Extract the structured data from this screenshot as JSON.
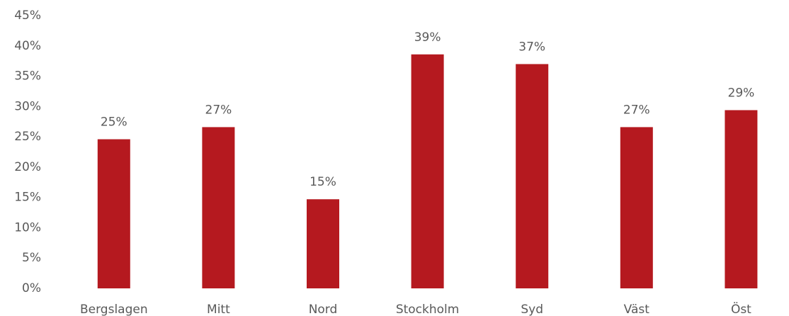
{
  "chart_data": {
    "type": "bar",
    "categories": [
      "Bergslagen",
      "Mitt",
      "Nord",
      "Stockholm",
      "Syd",
      "Väst",
      "Öst"
    ],
    "values": [
      24.6,
      26.6,
      14.7,
      38.6,
      37.0,
      26.6,
      29.4
    ],
    "value_labels": [
      "25%",
      "27%",
      "15%",
      "39%",
      "37%",
      "27%",
      "29%"
    ],
    "color": "#b5191f",
    "ylim": [
      0,
      45
    ],
    "yticks": [
      {
        "value": 0,
        "label": "0%"
      },
      {
        "value": 5,
        "label": "5%"
      },
      {
        "value": 10,
        "label": "10%"
      },
      {
        "value": 15,
        "label": "15%"
      },
      {
        "value": 20,
        "label": "20%"
      },
      {
        "value": 25,
        "label": "25%"
      },
      {
        "value": 30,
        "label": "30%"
      },
      {
        "value": 35,
        "label": "35%"
      },
      {
        "value": 40,
        "label": "40%"
      },
      {
        "value": 45,
        "label": "45%"
      }
    ],
    "grid": false
  }
}
